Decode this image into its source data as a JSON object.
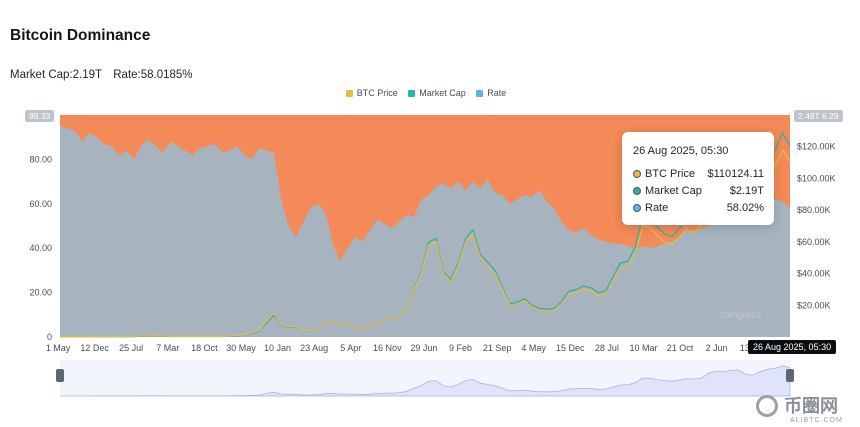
{
  "page": {
    "title": "Bitcoin Dominance",
    "market_cap_label": "Market Cap:2.19T",
    "rate_label": "Rate:58.0185%"
  },
  "legend": [
    {
      "label": "BTC Price",
      "color": "#e9b84a"
    },
    {
      "label": "Market Cap",
      "color": "#2bb5a0"
    },
    {
      "label": "Rate",
      "color": "#5ab4ec"
    }
  ],
  "colors": {
    "dominance_area": "#a7b4bf",
    "remainder_area": "#f38a57",
    "btc_price_line": "#e9b84a",
    "market_cap_line": "#2bb5a0",
    "navigator_fill": "#dfe3fb"
  },
  "tooltip": {
    "date": "26 Aug 2025, 05:30",
    "rows": [
      {
        "label": "BTC Price",
        "value": "$110124.11",
        "color": "#e9b84a"
      },
      {
        "label": "Market Cap",
        "value": "$2.19T",
        "color": "#2bb5a0"
      },
      {
        "label": "Rate",
        "value": "58.02%",
        "color": "#5ab4ec"
      }
    ]
  },
  "badges": {
    "left_max": "99.33",
    "right_max": "2.48T  6.29",
    "current_date": "26 Aug 2025, 05:30"
  },
  "watermark": "coinglass",
  "corner_logo": {
    "text": "币圈网",
    "sub": "ALIBTC.COM"
  },
  "chart_data": {
    "type": "area",
    "title": "Bitcoin Dominance",
    "x_ticks": [
      "1 May",
      "12 Dec",
      "25 Jul",
      "7 Mar",
      "18 Oct",
      "30 May",
      "10 Jan",
      "23 Aug",
      "5 Apr",
      "16 Nov",
      "29 Jun",
      "9 Feb",
      "21 Sep",
      "4 May",
      "15 Dec",
      "28 Jul",
      "10 Mar",
      "21 Oct",
      "2 Jun",
      "13 Jan"
    ],
    "left_axis": {
      "ticks": [
        "0",
        "20.00",
        "40.00",
        "60.00",
        "80.00"
      ],
      "range": [
        0,
        100
      ]
    },
    "right_axis": {
      "ticks": [
        "$20.00K",
        "$40.00K",
        "$60.00K",
        "$80.00K",
        "$100.00K",
        "$120.00K"
      ],
      "range": [
        0,
        140000
      ]
    },
    "series": [
      {
        "name": "Rate",
        "unit": "%",
        "values": [
          95,
          94,
          93,
          88,
          92,
          90,
          87,
          86,
          82,
          84,
          80,
          86,
          89,
          86,
          83,
          88,
          86,
          84,
          82,
          85,
          86,
          87,
          83,
          84,
          86,
          82,
          80,
          85,
          84,
          83,
          62,
          50,
          45,
          52,
          58,
          60,
          56,
          42,
          34,
          40,
          45,
          43,
          48,
          53,
          51,
          49,
          52,
          55,
          54,
          62,
          64,
          68,
          69,
          67,
          70,
          66,
          70,
          67,
          71,
          65,
          64,
          60,
          62,
          64,
          63,
          66,
          61,
          58,
          52,
          48,
          47,
          49,
          46,
          44,
          43,
          42,
          42,
          41,
          40,
          41,
          40,
          41,
          42,
          43,
          45,
          48,
          47,
          49,
          50,
          52,
          53,
          54,
          55,
          56,
          58,
          60,
          62,
          62,
          61,
          58
        ]
      },
      {
        "name": "BTC Price",
        "unit": "USD",
        "values": [
          120,
          120,
          110,
          110,
          150,
          200,
          230,
          270,
          280,
          300,
          400,
          600,
          650,
          700,
          620,
          500,
          450,
          430,
          420,
          430,
          440,
          450,
          460,
          600,
          1000,
          1200,
          2500,
          4000,
          10000,
          15000,
          8000,
          6500,
          6700,
          4000,
          3800,
          5000,
          9000,
          10000,
          8000,
          7500,
          7000,
          5000,
          7000,
          9000,
          11000,
          11500,
          13000,
          18000,
          30000,
          40000,
          58000,
          60000,
          40000,
          35000,
          45000,
          60000,
          65000,
          50000,
          45000,
          40000,
          30000,
          20000,
          21000,
          23000,
          19000,
          17000,
          16500,
          17000,
          21000,
          27000,
          28000,
          30000,
          29000,
          26000,
          27000,
          35000,
          43000,
          44000,
          52000,
          70000,
          69000,
          64000,
          60000,
          58000,
          63000,
          68000,
          66000,
          70000,
          90000,
          97000,
          94000,
          100000,
          102000,
          84000,
          82000,
          95000,
          105000,
          108000,
          118000,
          110124
        ]
      },
      {
        "name": "Market Cap",
        "unit": "USD",
        "values": [
          1.4,
          1.4,
          1.3,
          1.3,
          1.8,
          2.4,
          2.8,
          3.3,
          3.4,
          3.7,
          5.0,
          7.5,
          8.2,
          8.8,
          7.8,
          6.3,
          5.7,
          5.5,
          5.4,
          5.5,
          5.6,
          5.8,
          6.0,
          8.0,
          14,
          17,
          38,
          63,
          160,
          250,
          140,
          110,
          115,
          70,
          66,
          88,
          160,
          180,
          145,
          135,
          128,
          90,
          128,
          165,
          200,
          210,
          240,
          335,
          560,
          750,
          1090,
          1130,
          750,
          660,
          850,
          1130,
          1230,
          950,
          860,
          760,
          570,
          380,
          400,
          440,
          365,
          327,
          318,
          328,
          405,
          525,
          545,
          585,
          567,
          509,
          530,
          690,
          850,
          870,
          1030,
          1380,
          1365,
          1265,
          1185,
          1150,
          1250,
          1350,
          1310,
          1390,
          1790,
          1930,
          1870,
          1990,
          2030,
          1670,
          1630,
          1890,
          2090,
          2150,
          2350,
          2190
        ]
      }
    ]
  }
}
